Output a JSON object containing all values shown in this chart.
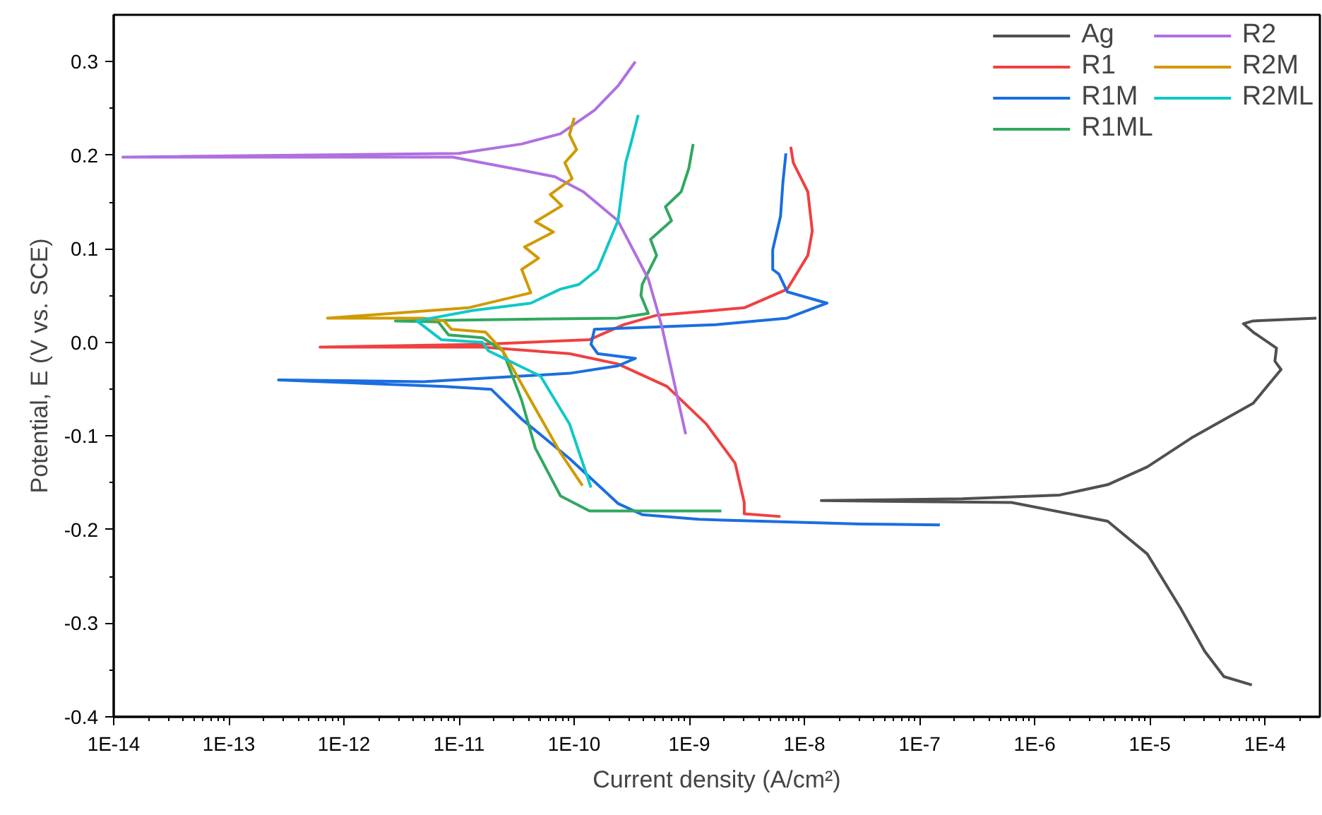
{
  "chart_data": {
    "type": "line",
    "xlabel": "Current density (A/cm²)",
    "ylabel": "Potential, E (V vs. SCE)",
    "log": "x",
    "grid": false,
    "legend": "top right",
    "marker": "none",
    "line_style": "solid",
    "xlim": [
      1e-14,
      0.0003
    ],
    "ylim": [
      -0.4,
      0.35
    ],
    "xticks": [
      {
        "value": 1e-14,
        "label": "1E-14"
      },
      {
        "value": 1e-13,
        "label": "1E-13"
      },
      {
        "value": 1e-12,
        "label": "1E-12"
      },
      {
        "value": 1e-11,
        "label": "1E-11"
      },
      {
        "value": 1e-10,
        "label": "1E-10"
      },
      {
        "value": 1e-09,
        "label": "1E-9"
      },
      {
        "value": 1e-08,
        "label": "1E-8"
      },
      {
        "value": 1e-07,
        "label": "1E-7"
      },
      {
        "value": 1e-06,
        "label": "1E-6"
      },
      {
        "value": 1e-05,
        "label": "1E-5"
      },
      {
        "value": 0.0001,
        "label": "1E-4"
      }
    ],
    "yticks": [
      -0.4,
      -0.3,
      -0.2,
      -0.1,
      {
        "value": 0,
        "label": "0.0"
      },
      0.1,
      0.2,
      0.3
    ],
    "series": [
      {
        "name": "Ag",
        "color": "#505050",
        "x": [
          7.7e-05,
          4.4e-05,
          3e-05,
          1.85e-05,
          9.5e-06,
          4.3e-06,
          6.3e-07,
          1.4e-08,
          2.35e-07,
          1.65e-06,
          4.3e-06,
          9.5e-06,
          2.3e-05,
          7.9e-05,
          0.000106,
          0.000138,
          0.000122,
          0.000126,
          7.9e-05,
          6.5e-05,
          7.9e-05,
          0.00028
        ],
        "values": [
          -0.366,
          -0.357,
          -0.33,
          -0.284,
          -0.226,
          -0.191,
          -0.171,
          -0.169,
          -0.167,
          -0.163,
          -0.152,
          -0.133,
          -0.102,
          -0.065,
          -0.046,
          -0.029,
          -0.02,
          -0.006,
          0.011,
          0.02,
          0.023,
          0.026
        ]
      },
      {
        "name": "R1",
        "color": "#f04040",
        "x": [
          6.2e-09,
          3e-09,
          3e-09,
          2.5e-09,
          1.4e-09,
          6.4e-10,
          2.4e-10,
          9.1e-11,
          1.6e-11,
          6.2e-13,
          1.6e-11,
          1.36e-10,
          2.7e-10,
          5.2e-10,
          3e-09,
          7.1e-09,
          1.07e-08,
          1.17e-08,
          1.07e-08,
          8e-09,
          7.6e-09
        ],
        "values": [
          -0.186,
          -0.183,
          -0.171,
          -0.129,
          -0.087,
          -0.047,
          -0.023,
          -0.012,
          -0.005,
          -0.005,
          -0.002,
          0.003,
          0.019,
          0.029,
          0.037,
          0.057,
          0.093,
          0.119,
          0.161,
          0.192,
          0.209
        ]
      },
      {
        "name": "R1M",
        "color": "#1a6ee0",
        "x": [
          1.5e-07,
          3.1e-08,
          1.2e-09,
          3.9e-10,
          2.4e-10,
          9.1e-11,
          3.5e-11,
          1.9e-11,
          9.9e-12,
          7.4e-12,
          2.7e-13,
          4.9e-12,
          9.1e-11,
          2.4e-10,
          3.4e-10,
          1.6e-10,
          1.4e-10,
          1.5e-10,
          1.7e-09,
          7.1e-09,
          1.57e-08,
          7.1e-09,
          6e-09,
          5.3e-09,
          5.3e-09,
          6.2e-09,
          6.5e-09,
          6.9e-09
        ],
        "values": [
          -0.195,
          -0.194,
          -0.189,
          -0.184,
          -0.172,
          -0.124,
          -0.082,
          -0.05,
          -0.048,
          -0.047,
          -0.04,
          -0.042,
          -0.033,
          -0.025,
          -0.017,
          -0.012,
          -0.002,
          0.014,
          0.019,
          0.026,
          0.042,
          0.054,
          0.073,
          0.078,
          0.099,
          0.135,
          0.171,
          0.202
        ]
      },
      {
        "name": "R1ML",
        "color": "#30a860",
        "x": [
          1.9e-09,
          1.36e-10,
          7.6e-11,
          4.6e-11,
          3.5e-11,
          2.4e-11,
          1.6e-11,
          8.1e-12,
          6.6e-12,
          2.8e-12,
          2.4e-10,
          4.4e-10,
          3.8e-10,
          3.9e-10,
          5.2e-10,
          4.6e-10,
          7e-10,
          6.2e-10,
          8.5e-10,
          9.9e-10,
          1.08e-09
        ],
        "values": [
          -0.18,
          -0.18,
          -0.164,
          -0.113,
          -0.062,
          -0.009,
          0.005,
          0.008,
          0.022,
          0.023,
          0.026,
          0.031,
          0.05,
          0.062,
          0.093,
          0.11,
          0.13,
          0.145,
          0.161,
          0.186,
          0.212
        ]
      },
      {
        "name": "R2",
        "color": "#b070e0",
        "x": [
          9.3e-10,
          7.8e-10,
          5.8e-10,
          5.2e-10,
          4.4e-10,
          2.4e-10,
          1.2e-10,
          6.8e-11,
          3.5e-11,
          8.8e-12,
          1.2e-14,
          9.9e-12,
          3.5e-11,
          7.6e-11,
          1.5e-10,
          2.4e-10,
          3.4e-10
        ],
        "values": [
          -0.098,
          -0.056,
          0.016,
          0.037,
          0.068,
          0.13,
          0.161,
          0.177,
          0.184,
          0.198,
          0.198,
          0.202,
          0.212,
          0.223,
          0.248,
          0.274,
          0.3
        ]
      },
      {
        "name": "R2M",
        "color": "#d09a00",
        "x": [
          1.18e-10,
          7.6e-11,
          4.2e-11,
          2.4e-11,
          1.7e-11,
          8.6e-12,
          7.4e-12,
          4.9e-12,
          7.2e-13,
          1.2e-11,
          4.2e-11,
          3.5e-11,
          4.9e-11,
          3.7e-11,
          6.6e-11,
          4.6e-11,
          7.8e-11,
          6.2e-11,
          9.6e-11,
          8.3e-11,
          1.05e-10,
          9.1e-11,
          1e-10
        ],
        "values": [
          -0.153,
          -0.118,
          -0.062,
          -0.009,
          0.011,
          0.014,
          0.023,
          0.026,
          0.026,
          0.037,
          0.053,
          0.078,
          0.09,
          0.102,
          0.118,
          0.129,
          0.146,
          0.158,
          0.175,
          0.192,
          0.206,
          0.222,
          0.24
        ]
      },
      {
        "name": "R2ML",
        "color": "#10c8c8",
        "x": [
          1.4e-10,
          9.1e-11,
          5.1e-11,
          1.8e-11,
          1.6e-11,
          7e-12,
          4.3e-12,
          1.3e-11,
          4.2e-11,
          7.6e-11,
          1.1e-10,
          1.6e-10,
          2.4e-10,
          2.8e-10,
          3.1e-10,
          3.6e-10
        ],
        "values": [
          -0.155,
          -0.087,
          -0.036,
          -0.009,
          0.0,
          0.003,
          0.023,
          0.034,
          0.042,
          0.057,
          0.062,
          0.078,
          0.13,
          0.192,
          0.212,
          0.243
        ]
      }
    ]
  }
}
